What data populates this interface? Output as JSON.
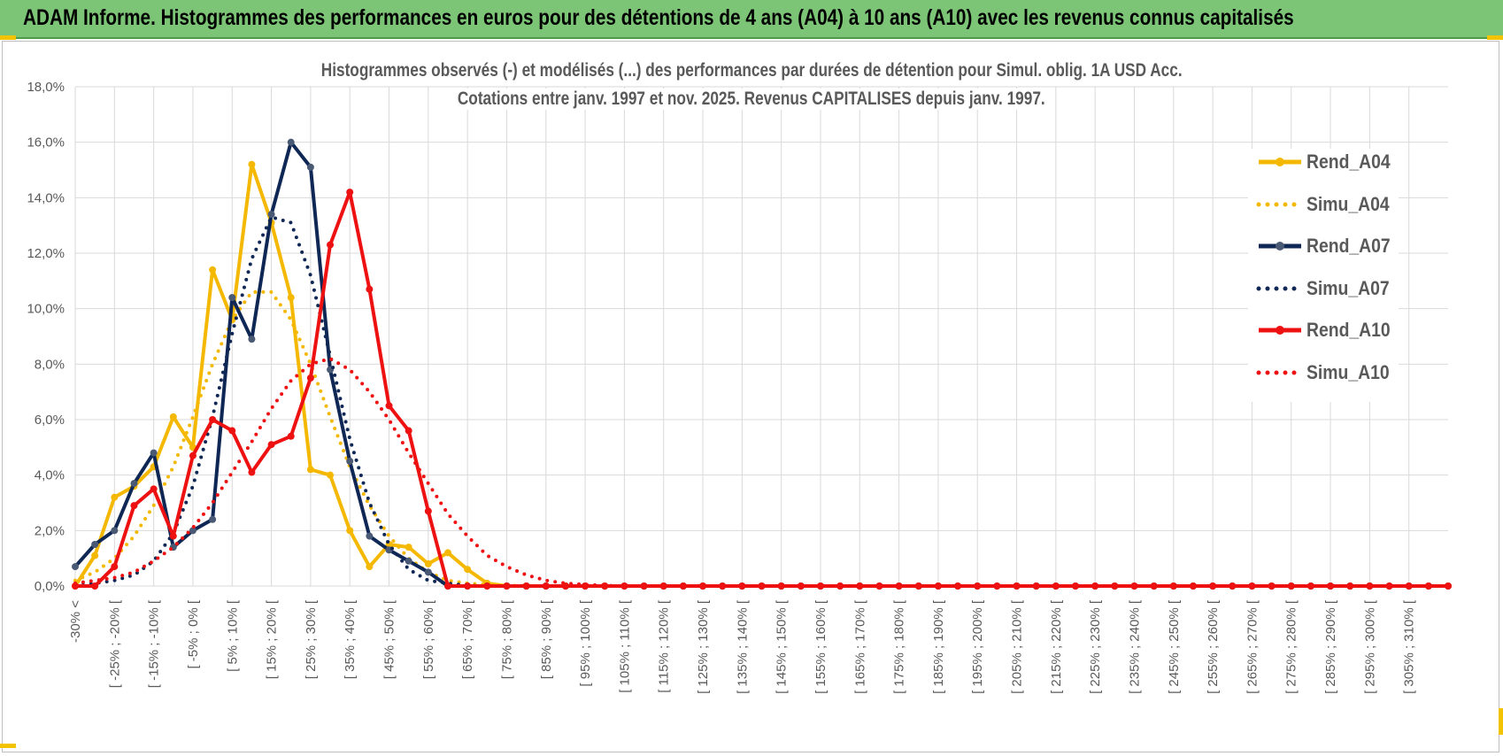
{
  "header": {
    "title": "ADAM Informe. Histogrammes des performances en euros pour des détentions de 4 ans (A04) à 10 ans (A10) avec les revenus connus capitalisés"
  },
  "chart_data": {
    "type": "line",
    "title_line1": "Histogrammes observés (-) et modélisés (...) des performances par durées de détention pour Simul. oblig. 1A USD Acc.",
    "title_line2": "Cotations entre janv. 1997 et nov. 2025. Revenus CAPITALISES depuis janv. 1997.",
    "ylim": [
      0,
      18
    ],
    "y_ticks": [
      "0,0%",
      "2,0%",
      "4,0%",
      "6,0%",
      "8,0%",
      "10,0%",
      "12,0%",
      "14,0%",
      "16,0%",
      "18,0%"
    ],
    "x_labels": [
      "-30% <",
      "[ -25% ; -20% [",
      "[ -15% ; -10% [",
      "[ -5% ; 0% [",
      "[ 5% ; 10% [",
      "[ 15% ; 20% [",
      "[ 25% ; 30% [",
      "[ 35% ; 40% [",
      "[ 45% ; 50% [",
      "[ 55% ; 60% [",
      "[ 65% ; 70% [",
      "[ 75% ; 80% [",
      "[ 85% ; 90% [",
      "[ 95% ; 100% [",
      "[ 105% ; 110% [",
      "[ 115% ; 120% [",
      "[ 125% ; 130% [",
      "[ 135% ; 140% [",
      "[ 145% ; 150% [",
      "[ 155% ; 160% [",
      "[ 165% ; 170% [",
      "[ 175% ; 180% [",
      "[ 185% ; 190% [",
      "[ 195% ; 200% [",
      "[ 205% ; 210% [",
      "[ 215% ; 220% [",
      "[ 225% ; 230% [",
      "[ 235% ; 240% [",
      "[ 245% ; 250% [",
      "[ 255% ; 260% [",
      "[ 265% ; 270% [",
      "[ 275% ; 280% [",
      "[ 285% ; 290% [",
      "[ 295% ; 300% [",
      "[ 305% ; 310% ["
    ],
    "grid": true,
    "legend_position": "right",
    "series": [
      {
        "name": "Rend_A04",
        "style": "solid",
        "color": "#f5b800",
        "values": [
          0.0,
          1.1,
          3.2,
          3.6,
          4.3,
          6.1,
          5.0,
          11.4,
          9.6,
          15.2,
          13.1,
          10.4,
          4.2,
          4.0,
          2.0,
          0.7,
          1.5,
          1.4,
          0.8,
          1.2,
          0.6,
          0.1,
          0,
          0,
          0,
          0,
          0,
          0,
          0,
          0,
          0,
          0,
          0,
          0,
          0,
          0,
          0,
          0,
          0,
          0,
          0,
          0,
          0,
          0,
          0,
          0,
          0,
          0,
          0,
          0,
          0,
          0,
          0,
          0,
          0,
          0,
          0,
          0,
          0,
          0,
          0,
          0,
          0,
          0,
          0,
          0,
          0,
          0,
          0,
          0,
          0
        ]
      },
      {
        "name": "Simu_A04",
        "style": "dotted",
        "color": "#f5b800",
        "values": [
          0.2,
          0.5,
          1.0,
          1.8,
          2.9,
          4.3,
          6.1,
          8.0,
          9.6,
          10.6,
          10.6,
          9.6,
          8.0,
          6.1,
          4.3,
          2.9,
          1.8,
          1.0,
          0.5,
          0.2,
          0.1,
          0.05,
          0.02,
          0.01,
          0,
          0,
          0,
          0,
          0,
          0,
          0,
          0,
          0,
          0,
          0,
          0,
          0,
          0,
          0,
          0,
          0,
          0,
          0,
          0,
          0,
          0,
          0,
          0,
          0,
          0,
          0,
          0,
          0,
          0,
          0,
          0,
          0,
          0,
          0,
          0,
          0,
          0,
          0,
          0,
          0,
          0,
          0,
          0,
          0,
          0,
          0
        ]
      },
      {
        "name": "Rend_A07",
        "style": "solid",
        "color": "#0f2755",
        "values": [
          0.7,
          1.5,
          2.0,
          3.7,
          4.8,
          1.4,
          2.0,
          2.4,
          10.4,
          8.9,
          13.4,
          16.0,
          15.1,
          7.8,
          4.5,
          1.8,
          1.3,
          0.9,
          0.5,
          0.0,
          0,
          0,
          0,
          0,
          0,
          0,
          0,
          0,
          0,
          0,
          0,
          0,
          0,
          0,
          0,
          0,
          0,
          0,
          0,
          0,
          0,
          0,
          0,
          0,
          0,
          0,
          0,
          0,
          0,
          0,
          0,
          0,
          0,
          0,
          0,
          0,
          0,
          0,
          0,
          0,
          0,
          0,
          0,
          0,
          0,
          0,
          0,
          0,
          0,
          0,
          0
        ]
      },
      {
        "name": "Simu_A07",
        "style": "dotted",
        "color": "#0f2755",
        "values": [
          0.0,
          0.1,
          0.2,
          0.4,
          0.9,
          1.9,
          3.6,
          6.1,
          9.1,
          11.8,
          13.3,
          13.1,
          11.2,
          8.3,
          5.3,
          3.0,
          1.5,
          0.6,
          0.2,
          0.1,
          0.02,
          0,
          0,
          0,
          0,
          0,
          0,
          0,
          0,
          0,
          0,
          0,
          0,
          0,
          0,
          0,
          0,
          0,
          0,
          0,
          0,
          0,
          0,
          0,
          0,
          0,
          0,
          0,
          0,
          0,
          0,
          0,
          0,
          0,
          0,
          0,
          0,
          0,
          0,
          0,
          0,
          0,
          0,
          0,
          0,
          0,
          0,
          0,
          0,
          0,
          0
        ]
      },
      {
        "name": "Rend_A10",
        "style": "solid",
        "color": "#ee1111",
        "values": [
          0.0,
          0.0,
          0.7,
          2.9,
          3.5,
          1.8,
          4.7,
          6.0,
          5.6,
          4.1,
          5.1,
          5.4,
          7.5,
          12.3,
          14.2,
          10.7,
          6.5,
          5.6,
          2.7,
          0.0,
          0.0,
          0,
          0,
          0,
          0,
          0,
          0,
          0,
          0,
          0,
          0,
          0,
          0,
          0,
          0,
          0,
          0,
          0,
          0,
          0,
          0,
          0,
          0,
          0,
          0,
          0,
          0,
          0,
          0,
          0,
          0,
          0,
          0,
          0,
          0,
          0,
          0,
          0,
          0,
          0,
          0,
          0,
          0,
          0,
          0,
          0,
          0,
          0,
          0,
          0,
          0
        ]
      },
      {
        "name": "Simu_A10",
        "style": "dotted",
        "color": "#ee1111",
        "values": [
          0.1,
          0.2,
          0.3,
          0.5,
          0.9,
          1.4,
          2.1,
          3.0,
          4.1,
          5.2,
          6.4,
          7.4,
          8.0,
          8.2,
          7.8,
          7.0,
          6.0,
          4.8,
          3.7,
          2.6,
          1.8,
          1.1,
          0.7,
          0.4,
          0.2,
          0.1,
          0.05,
          0.02,
          0,
          0,
          0,
          0,
          0,
          0,
          0,
          0,
          0,
          0,
          0,
          0,
          0,
          0,
          0,
          0,
          0,
          0,
          0,
          0,
          0,
          0,
          0,
          0,
          0,
          0,
          0,
          0,
          0,
          0,
          0,
          0,
          0,
          0,
          0,
          0,
          0,
          0,
          0,
          0,
          0,
          0,
          0
        ]
      }
    ]
  }
}
